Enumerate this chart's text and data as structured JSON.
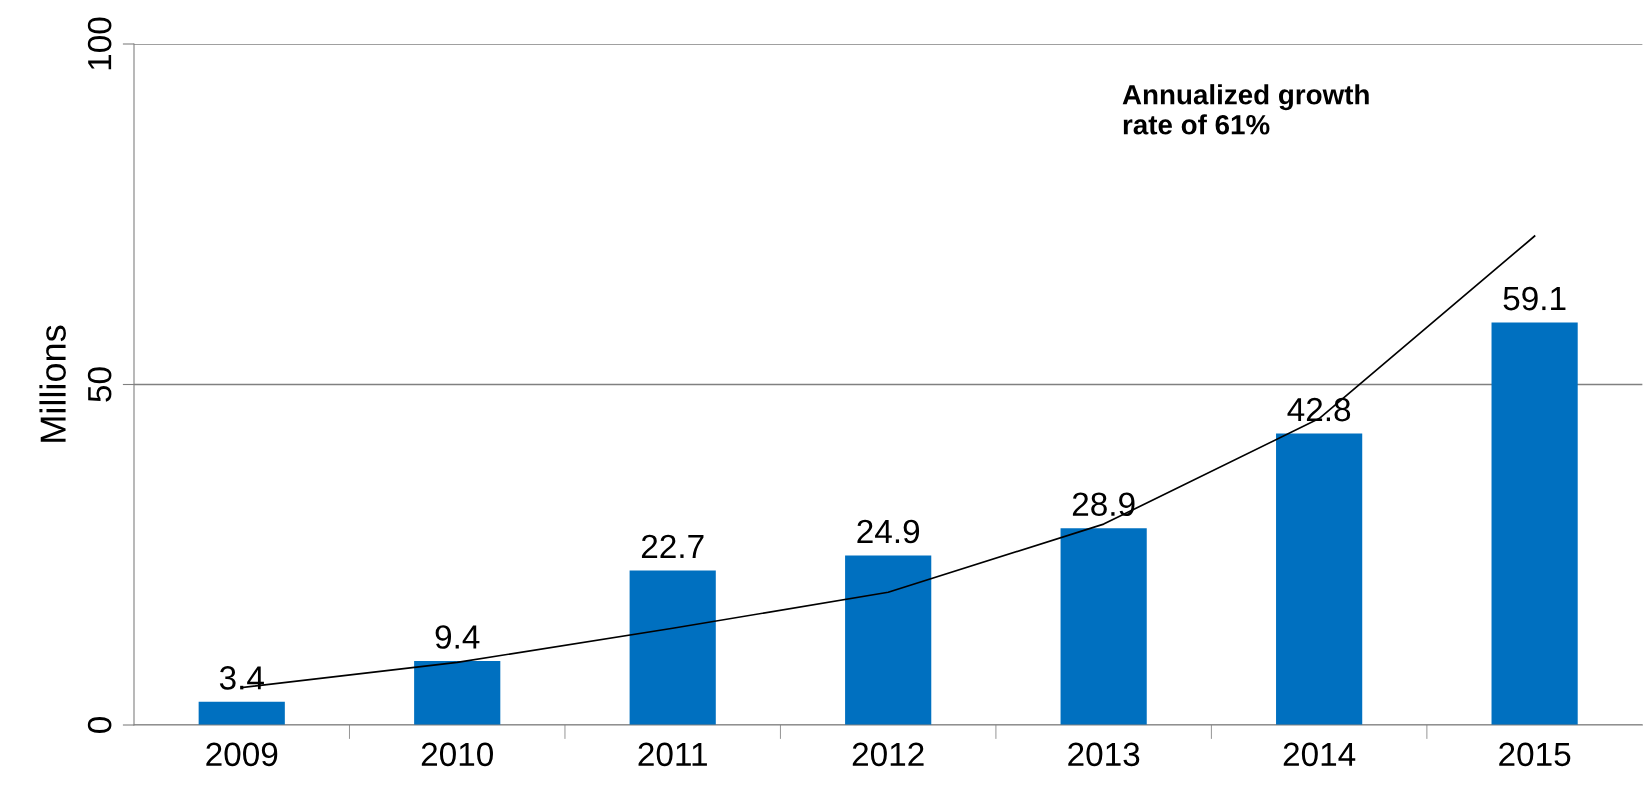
{
  "chart_data": {
    "type": "bar",
    "ylabel": "Millions",
    "categories": [
      "2009",
      "2010",
      "2011",
      "2012",
      "2013",
      "2014",
      "2015"
    ],
    "series": [
      {
        "color": "#0070c0",
        "values": [
          3.4,
          9.4,
          22.7,
          24.9,
          28.9,
          42.8,
          59.1
        ],
        "value_labels": [
          "3.4",
          "9.4",
          "22.7",
          "24.9",
          "28.9",
          "42.8",
          "59.1"
        ]
      },
      {
        "type": "line",
        "color": "#000000",
        "values": [
          5.5,
          9.2,
          14.2,
          19.5,
          29.5,
          45,
          71.8
        ]
      }
    ],
    "ylim": [
      0,
      100
    ],
    "yticks": [
      0,
      50,
      100
    ],
    "grid": "y",
    "annotations": [
      "Annualized growth\nrate of 61%"
    ]
  }
}
